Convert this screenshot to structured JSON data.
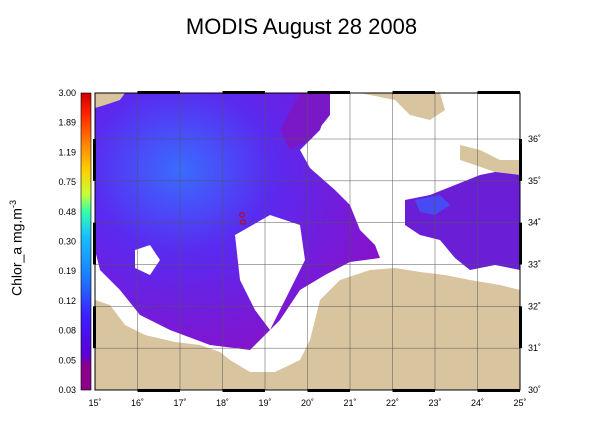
{
  "title": "MODIS August 28 2008",
  "colorbar": {
    "label": "Chlor_a mg.m",
    "label_sup": "-3",
    "ticks": [
      "3.00",
      "1.89",
      "1.19",
      "0.75",
      "0.48",
      "0.30",
      "0.19",
      "0.12",
      "0.08",
      "0.05",
      "0.03"
    ],
    "stops": [
      "#8b008b",
      "#6a00cc",
      "#3a20ff",
      "#1a7cff",
      "#19c0ff",
      "#33ffaa",
      "#c8ff33",
      "#ffd000",
      "#ff7a00",
      "#ff2200",
      "#cc0000"
    ]
  },
  "map": {
    "lon_ticks": [
      "15˚",
      "16˚",
      "17˚",
      "18˚",
      "19˚",
      "20˚",
      "21˚",
      "22˚",
      "23˚",
      "24˚",
      "25˚"
    ],
    "lat_ticks": [
      "36˚",
      "35˚",
      "34˚",
      "33˚",
      "32˚",
      "31˚",
      "30˚"
    ],
    "lon_range": [
      15,
      25
    ],
    "lat_range": [
      30,
      37.1
    ],
    "land_color": "#d8c49e",
    "ocean_colors": [
      "#6a1fd6",
      "#5a2af0",
      "#8a10c8",
      "#3a5cff",
      "#2a90ff"
    ],
    "cloud_color": "#ffffff"
  }
}
